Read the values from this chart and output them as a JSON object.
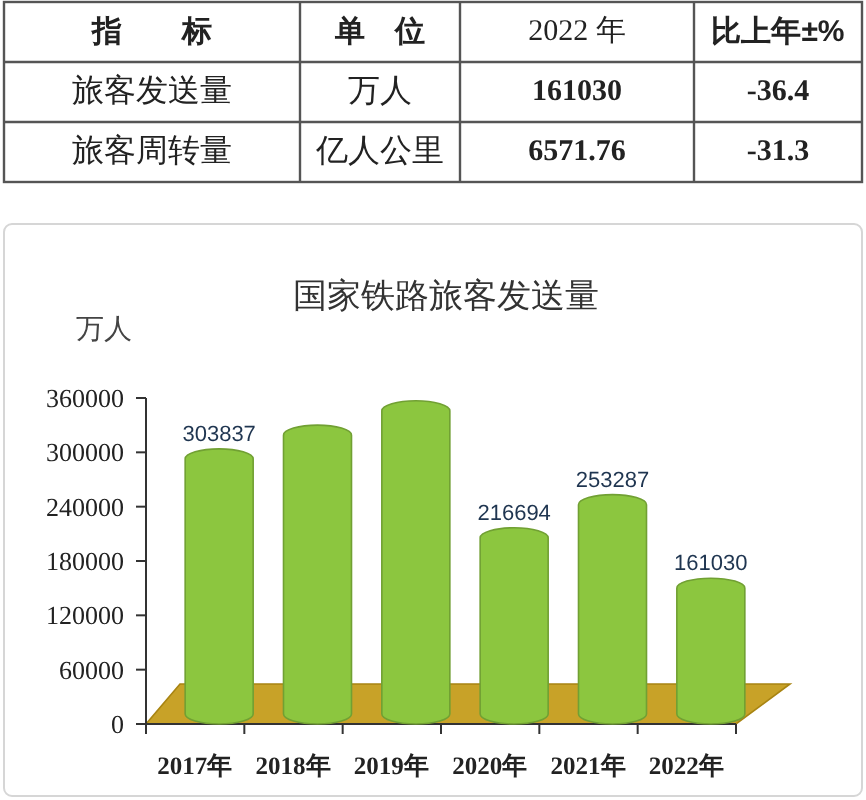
{
  "chart_data": [
    {
      "type": "other",
      "categories": [
        "指　　标",
        "单　位",
        "2022 年",
        "比上年±%"
      ],
      "cell_labels": [
        [
          "旅客发送量",
          "万人",
          "161030",
          "-36.4"
        ],
        [
          "旅客周转量",
          "亿人公里",
          "6571.76",
          "-31.3"
        ]
      ]
    },
    {
      "type": "bar",
      "title": "国家铁路旅客发送量",
      "ylabel": "万人",
      "categories": [
        "2017年",
        "2018年",
        "2019年",
        "2020年",
        "2021年",
        "2022年"
      ],
      "values": [
        303837,
        330000,
        357000,
        216694,
        253287,
        161030
      ],
      "value_labels": [
        "303837",
        null,
        null,
        "216694",
        "253287",
        "161030"
      ],
      "color": "#8cc63f",
      "ylim": [
        0,
        360000
      ],
      "yticks": [
        0,
        60000,
        120000,
        180000,
        240000,
        300000,
        360000
      ]
    }
  ]
}
